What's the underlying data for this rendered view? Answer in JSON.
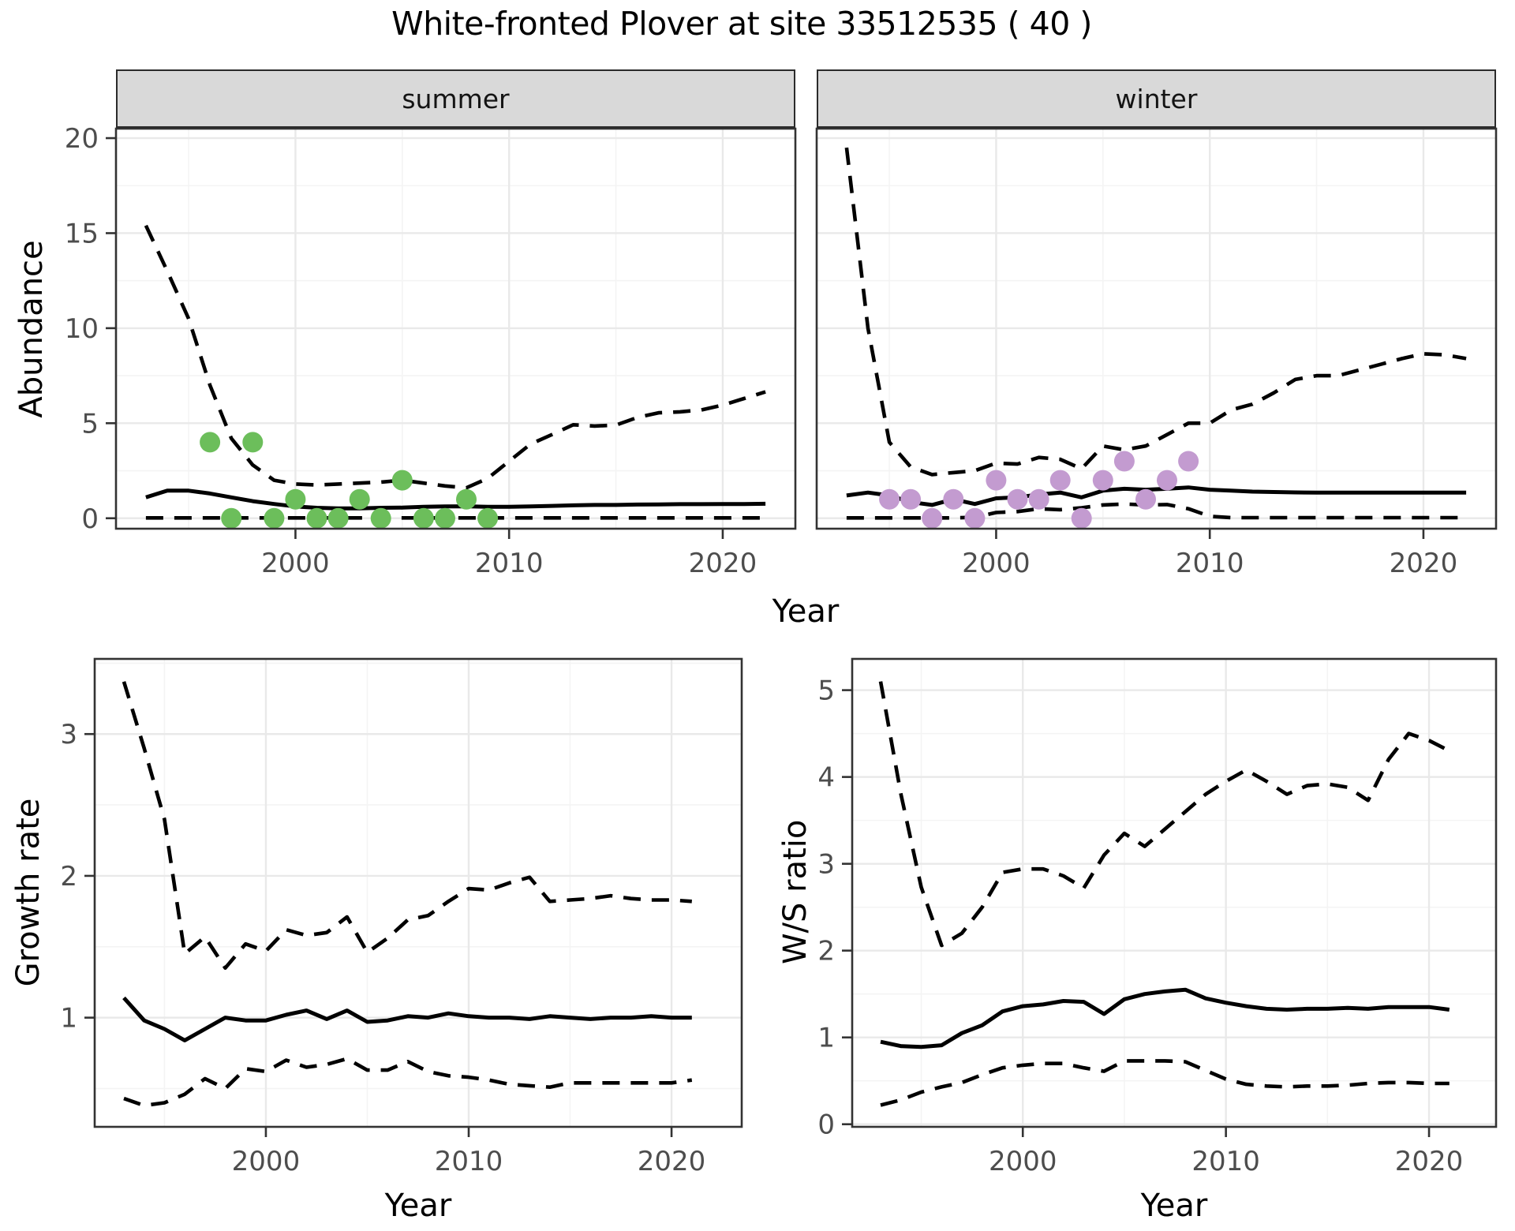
{
  "title": "White-fronted Plover at site 33512535 ( 40 )",
  "strips": {
    "summer": "summer",
    "winter": "winter"
  },
  "axis_titles": {
    "abundance": "Abundance",
    "year_top": "Year",
    "growth_rate": "Growth rate",
    "ws_ratio": "W/S ratio",
    "year_bottom_left": "Year",
    "year_bottom_right": "Year"
  },
  "style_colors": {
    "line": "#000000",
    "grid_major": "#E9E9E9",
    "grid_minor": "#F4F4F4",
    "panel_border": "#333333",
    "tick_label": "#4D4D4D",
    "summer_point": "#6CBE5B",
    "winter_point": "#C39BD0"
  },
  "chart_data": [
    {
      "id": "abundance-summer",
      "type": "line",
      "facet_label": "summer",
      "xlabel": "Year",
      "ylabel": "Abundance",
      "xlim": [
        1991.6,
        2023.4
      ],
      "ylim": [
        -0.55,
        20.5
      ],
      "xticks": [
        2000,
        2010,
        2020
      ],
      "xticks_minor": [
        1995,
        2005,
        2015
      ],
      "yticks": [
        0,
        5,
        10,
        15,
        20
      ],
      "yticks_minor": [
        2.5,
        7.5,
        12.5,
        17.5
      ],
      "years": [
        1993,
        1994,
        1995,
        1996,
        1997,
        1998,
        1999,
        2000,
        2001,
        2002,
        2003,
        2004,
        2005,
        2006,
        2007,
        2008,
        2009,
        2010,
        2011,
        2012,
        2013,
        2014,
        2015,
        2016,
        2017,
        2018,
        2019,
        2020,
        2021,
        2022
      ],
      "series": [
        {
          "name": "upper_ci",
          "style": "dashed",
          "values": [
            15.4,
            13.0,
            10.5,
            7.0,
            4.2,
            2.8,
            2.0,
            1.8,
            1.75,
            1.8,
            1.85,
            1.9,
            2.0,
            1.85,
            1.7,
            1.6,
            2.1,
            3.0,
            3.9,
            4.4,
            4.92,
            4.85,
            4.9,
            5.3,
            5.55,
            5.6,
            5.7,
            5.95,
            6.3,
            6.65
          ]
        },
        {
          "name": "lower_ci",
          "style": "dashed",
          "values": [
            0.02,
            0.02,
            0.02,
            0.02,
            0.02,
            0.02,
            0.02,
            0.02,
            0.02,
            0.02,
            0.02,
            0.02,
            0.02,
            0.02,
            0.02,
            0.02,
            0.02,
            0.02,
            0.02,
            0.02,
            0.02,
            0.02,
            0.02,
            0.02,
            0.02,
            0.02,
            0.02,
            0.02,
            0.02,
            0.02
          ]
        },
        {
          "name": "median",
          "style": "solid",
          "values": [
            1.1,
            1.45,
            1.45,
            1.3,
            1.1,
            0.9,
            0.75,
            0.62,
            0.55,
            0.52,
            0.52,
            0.55,
            0.56,
            0.6,
            0.62,
            0.63,
            0.6,
            0.6,
            0.62,
            0.65,
            0.68,
            0.7,
            0.7,
            0.72,
            0.73,
            0.74,
            0.74,
            0.75,
            0.75,
            0.76
          ]
        }
      ],
      "points": {
        "name": "observed-counts-summer",
        "color": "#6CBE5B",
        "years": [
          1996,
          1997,
          1998,
          1999,
          2000,
          2001,
          2002,
          2003,
          2004,
          2005,
          2006,
          2007,
          2008,
          2009
        ],
        "values": [
          4,
          0,
          4,
          0,
          1,
          0,
          0,
          1,
          0,
          2,
          0,
          0,
          1,
          0
        ]
      }
    },
    {
      "id": "abundance-winter",
      "type": "line",
      "facet_label": "winter",
      "xlabel": "Year",
      "ylabel": "Abundance",
      "xlim": [
        1991.6,
        2023.4
      ],
      "ylim": [
        -0.55,
        20.5
      ],
      "xticks": [
        2000,
        2010,
        2020
      ],
      "xticks_minor": [
        1995,
        2005,
        2015
      ],
      "yticks": [
        0,
        5,
        10,
        15,
        20
      ],
      "yticks_minor": [
        2.5,
        7.5,
        12.5,
        17.5
      ],
      "years": [
        1993,
        1994,
        1995,
        1996,
        1997,
        1998,
        1999,
        2000,
        2001,
        2002,
        2003,
        2004,
        2005,
        2006,
        2007,
        2008,
        2009,
        2010,
        2011,
        2012,
        2013,
        2014,
        2015,
        2016,
        2017,
        2018,
        2019,
        2020,
        2021,
        2022
      ],
      "series": [
        {
          "name": "upper_ci",
          "style": "dashed",
          "values": [
            19.5,
            10.0,
            4.0,
            2.7,
            2.3,
            2.4,
            2.5,
            2.9,
            2.85,
            3.2,
            3.1,
            2.6,
            3.8,
            3.6,
            3.8,
            4.4,
            5.0,
            5.0,
            5.7,
            6.0,
            6.6,
            7.3,
            7.5,
            7.5,
            7.8,
            8.1,
            8.4,
            8.65,
            8.6,
            8.4
          ]
        },
        {
          "name": "lower_ci",
          "style": "dashed",
          "values": [
            0.02,
            0.02,
            0.02,
            0.02,
            0.02,
            0.02,
            0.05,
            0.3,
            0.35,
            0.5,
            0.45,
            0.55,
            0.7,
            0.75,
            0.7,
            0.72,
            0.5,
            0.1,
            0.03,
            0.03,
            0.03,
            0.03,
            0.03,
            0.03,
            0.03,
            0.03,
            0.03,
            0.03,
            0.03,
            0.03
          ]
        },
        {
          "name": "median",
          "style": "solid",
          "values": [
            1.2,
            1.35,
            1.2,
            0.85,
            0.7,
            1.0,
            0.75,
            1.05,
            1.1,
            1.25,
            1.35,
            1.1,
            1.45,
            1.55,
            1.5,
            1.55,
            1.62,
            1.5,
            1.45,
            1.4,
            1.38,
            1.36,
            1.35,
            1.35,
            1.35,
            1.35,
            1.35,
            1.35,
            1.35,
            1.35
          ]
        }
      ],
      "points": {
        "name": "observed-counts-winter",
        "color": "#C39BD0",
        "years": [
          1995,
          1996,
          1997,
          1998,
          1999,
          2000,
          2001,
          2002,
          2003,
          2004,
          2005,
          2006,
          2007,
          2008,
          2009
        ],
        "values": [
          1,
          1,
          0,
          1,
          0,
          2,
          1,
          1,
          2,
          0,
          2,
          3,
          1,
          2,
          3
        ]
      }
    },
    {
      "id": "growth-rate",
      "type": "line",
      "facet_label": "",
      "xlabel": "Year",
      "ylabel": "Growth rate",
      "xlim": [
        1991.56,
        2023.46
      ],
      "ylim": [
        0.23,
        3.53
      ],
      "xticks": [
        2000,
        2010,
        2020
      ],
      "xticks_minor": [
        1995,
        2005,
        2015
      ],
      "yticks": [
        1,
        2,
        3
      ],
      "yticks_minor": [
        0.5,
        1.5,
        2.5,
        3.5
      ],
      "years": [
        1993,
        1994,
        1995,
        1996,
        1997,
        1998,
        1999,
        2000,
        2001,
        2002,
        2003,
        2004,
        2005,
        2006,
        2007,
        2008,
        2009,
        2010,
        2011,
        2012,
        2013,
        2014,
        2015,
        2016,
        2017,
        2018,
        2019,
        2020,
        2021
      ],
      "series": [
        {
          "name": "upper_ci",
          "style": "dashed",
          "values": [
            3.37,
            2.9,
            2.4,
            1.45,
            1.57,
            1.35,
            1.52,
            1.47,
            1.62,
            1.58,
            1.6,
            1.71,
            1.46,
            1.56,
            1.69,
            1.72,
            1.82,
            1.91,
            1.9,
            1.95,
            1.99,
            1.82,
            1.83,
            1.84,
            1.86,
            1.84,
            1.83,
            1.83,
            1.82
          ]
        },
        {
          "name": "lower_ci",
          "style": "dashed",
          "values": [
            0.43,
            0.38,
            0.4,
            0.46,
            0.57,
            0.5,
            0.64,
            0.62,
            0.7,
            0.65,
            0.67,
            0.71,
            0.63,
            0.63,
            0.69,
            0.62,
            0.59,
            0.58,
            0.56,
            0.53,
            0.52,
            0.51,
            0.54,
            0.54,
            0.54,
            0.54,
            0.54,
            0.54,
            0.56
          ]
        },
        {
          "name": "median",
          "style": "solid",
          "values": [
            1.14,
            0.98,
            0.92,
            0.84,
            0.92,
            1.0,
            0.98,
            0.98,
            1.02,
            1.05,
            0.99,
            1.05,
            0.97,
            0.98,
            1.01,
            1.0,
            1.03,
            1.01,
            1.0,
            1.0,
            0.99,
            1.01,
            1.0,
            0.99,
            1.0,
            1.0,
            1.01,
            1.0,
            1.0
          ]
        }
      ],
      "points": null
    },
    {
      "id": "ws-ratio",
      "type": "line",
      "facet_label": "",
      "xlabel": "Year",
      "ylabel": "W/S ratio",
      "xlim": [
        1991.6,
        2023.3
      ],
      "ylim": [
        -0.03,
        5.36
      ],
      "xticks": [
        2000,
        2010,
        2020
      ],
      "xticks_minor": [
        1995,
        2005,
        2015
      ],
      "yticks": [
        0,
        1,
        2,
        3,
        4,
        5
      ],
      "yticks_minor": [
        0.5,
        1.5,
        2.5,
        3.5,
        4.5
      ],
      "years": [
        1993,
        1994,
        1995,
        1996,
        1997,
        1998,
        1999,
        2000,
        2001,
        2002,
        2003,
        2004,
        2005,
        2006,
        2007,
        2008,
        2009,
        2010,
        2011,
        2012,
        2013,
        2014,
        2015,
        2016,
        2017,
        2018,
        2019,
        2020,
        2021
      ],
      "series": [
        {
          "name": "upper_ci",
          "style": "dashed",
          "values": [
            5.1,
            3.8,
            2.73,
            2.06,
            2.2,
            2.5,
            2.9,
            2.94,
            2.94,
            2.86,
            2.72,
            3.1,
            3.35,
            3.2,
            3.4,
            3.6,
            3.8,
            3.95,
            4.08,
            3.95,
            3.8,
            3.9,
            3.92,
            3.88,
            3.73,
            4.2,
            4.5,
            4.42,
            4.3
          ]
        },
        {
          "name": "lower_ci",
          "style": "dashed",
          "values": [
            0.22,
            0.28,
            0.37,
            0.43,
            0.48,
            0.57,
            0.65,
            0.68,
            0.7,
            0.7,
            0.65,
            0.61,
            0.73,
            0.73,
            0.73,
            0.72,
            0.62,
            0.52,
            0.46,
            0.44,
            0.43,
            0.44,
            0.44,
            0.45,
            0.47,
            0.48,
            0.48,
            0.47,
            0.47
          ]
        },
        {
          "name": "median",
          "style": "solid",
          "values": [
            0.95,
            0.9,
            0.89,
            0.91,
            1.05,
            1.14,
            1.3,
            1.36,
            1.38,
            1.42,
            1.41,
            1.27,
            1.44,
            1.5,
            1.53,
            1.55,
            1.45,
            1.4,
            1.36,
            1.33,
            1.32,
            1.33,
            1.33,
            1.34,
            1.33,
            1.35,
            1.35,
            1.35,
            1.32
          ]
        }
      ],
      "points": null
    }
  ]
}
